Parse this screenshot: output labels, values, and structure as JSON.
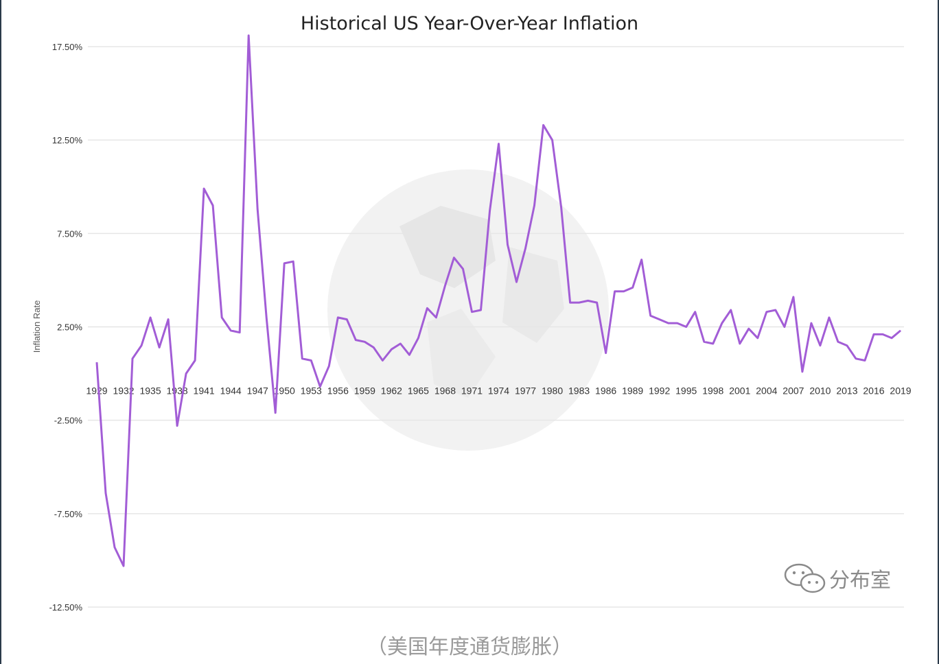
{
  "caption": "（美国年度通货膨胀）",
  "watermark": {
    "label": "分布室",
    "icon": "wechat-icon"
  },
  "colors": {
    "line": "#a25dd6",
    "grid": "#e6e6e6",
    "text": "#333333"
  },
  "chart_data": {
    "type": "line",
    "title": "Historical US Year-Over-Year Inflation",
    "xlabel": "",
    "ylabel": "Inflation Rate",
    "ylim": [
      -12.5,
      17.5
    ],
    "yticks": [
      17.5,
      12.5,
      7.5,
      2.5,
      -2.5,
      -7.5,
      -12.5
    ],
    "ytick_labels": [
      "17.50%",
      "12.50%",
      "7.50%",
      "2.50%",
      "-2.50%",
      "-7.50%",
      "-12.50%"
    ],
    "xtick_labels": [
      "1929",
      "1932",
      "1935",
      "1938",
      "1941",
      "1944",
      "1947",
      "1950",
      "1953",
      "1956",
      "1959",
      "1962",
      "1965",
      "1968",
      "1971",
      "1974",
      "1977",
      "1980",
      "1983",
      "1986",
      "1989",
      "1992",
      "1995",
      "1998",
      "2001",
      "2004",
      "2007",
      "2010",
      "2013",
      "2016",
      "2019"
    ],
    "grid": true,
    "legend": "none",
    "series": [
      {
        "x": [
          1929,
          1930,
          1931,
          1932,
          1933,
          1934,
          1935,
          1936,
          1937,
          1938,
          1939,
          1940,
          1941,
          1942,
          1943,
          1944,
          1945,
          1946,
          1947,
          1948,
          1949,
          1950,
          1951,
          1952,
          1953,
          1954,
          1955,
          1956,
          1957,
          1958,
          1959,
          1960,
          1961,
          1962,
          1963,
          1964,
          1965,
          1966,
          1967,
          1968,
          1969,
          1970,
          1971,
          1972,
          1973,
          1974,
          1975,
          1976,
          1977,
          1978,
          1979,
          1980,
          1981,
          1982,
          1983,
          1984,
          1985,
          1986,
          1987,
          1988,
          1989,
          1990,
          1991,
          1992,
          1993,
          1994,
          1995,
          1996,
          1997,
          1998,
          1999,
          2000,
          2001,
          2002,
          2003,
          2004,
          2005,
          2006,
          2007,
          2008,
          2009,
          2010,
          2011,
          2012,
          2013,
          2014,
          2015,
          2016,
          2017,
          2018,
          2019
        ],
        "values": [
          0.6,
          -6.4,
          -9.3,
          -10.3,
          0.8,
          1.5,
          3.0,
          1.4,
          2.9,
          -2.8,
          0.0,
          0.7,
          9.9,
          9.0,
          3.0,
          2.3,
          2.2,
          18.1,
          8.8,
          3.0,
          -2.1,
          5.9,
          6.0,
          0.8,
          0.7,
          -0.7,
          0.4,
          3.0,
          2.9,
          1.8,
          1.7,
          1.4,
          0.7,
          1.3,
          1.6,
          1.0,
          1.9,
          3.5,
          3.0,
          4.7,
          6.2,
          5.6,
          3.3,
          3.4,
          8.7,
          12.3,
          6.9,
          4.9,
          6.7,
          9.0,
          13.3,
          12.5,
          8.9,
          3.8,
          3.8,
          3.9,
          3.8,
          1.1,
          4.4,
          4.4,
          4.6,
          6.1,
          3.1,
          2.9,
          2.7,
          2.7,
          2.5,
          3.3,
          1.7,
          1.6,
          2.7,
          3.4,
          1.6,
          2.4,
          1.9,
          3.3,
          3.4,
          2.5,
          4.1,
          0.1,
          2.7,
          1.5,
          3.0,
          1.7,
          1.5,
          0.8,
          0.7,
          2.1,
          2.1,
          1.9,
          2.3
        ]
      }
    ]
  }
}
